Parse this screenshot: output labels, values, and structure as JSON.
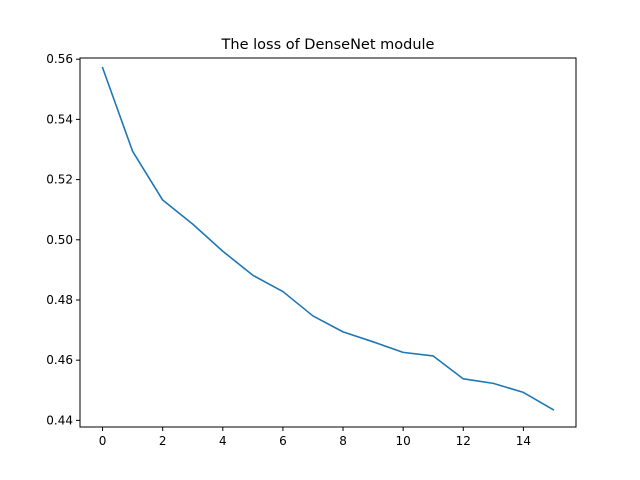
{
  "chart_data": {
    "type": "line",
    "title": "The loss of DenseNet module",
    "xlabel": "",
    "ylabel": "",
    "xlim": [
      -0.75,
      15.75
    ],
    "ylim": [
      0.4378,
      0.5604
    ],
    "xticks": [
      0,
      2,
      4,
      6,
      8,
      10,
      12,
      14
    ],
    "xtick_labels": [
      "0",
      "2",
      "4",
      "6",
      "8",
      "10",
      "12",
      "14"
    ],
    "yticks": [
      0.44,
      0.46,
      0.48,
      0.5,
      0.52,
      0.54,
      0.56
    ],
    "ytick_labels": [
      "0.44",
      "0.46",
      "0.48",
      "0.50",
      "0.52",
      "0.54",
      "0.56"
    ],
    "grid": false,
    "series": [
      {
        "color": "#1f77b4",
        "x": [
          0,
          1,
          2,
          3,
          4,
          5,
          6,
          7,
          8,
          9,
          10,
          11,
          12,
          13,
          14,
          15
        ],
        "y": [
          0.5572,
          0.5294,
          0.5132,
          0.5052,
          0.4962,
          0.4882,
          0.4828,
          0.4747,
          0.4694,
          0.4661,
          0.4626,
          0.4614,
          0.4538,
          0.4523,
          0.4493,
          0.4435
        ]
      }
    ]
  }
}
